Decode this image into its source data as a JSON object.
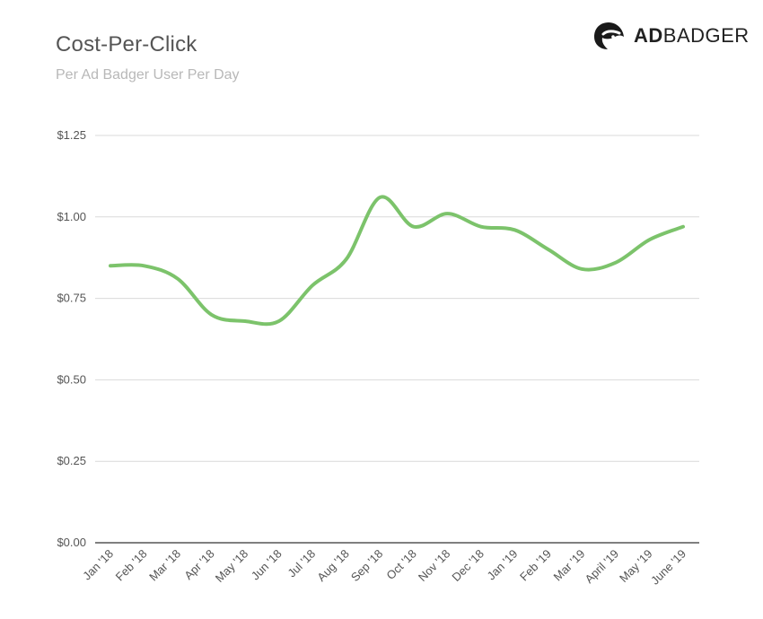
{
  "header": {
    "title": "Cost-Per-Click",
    "subtitle": "Per Ad Badger User Per Day"
  },
  "logo": {
    "icon": "badger-head-icon",
    "bold": "AD",
    "regular": "BADGER"
  },
  "colors": {
    "line": "#7cc36b",
    "grid": "#d9d9d9",
    "axis": "#555555"
  },
  "chart_data": {
    "type": "line",
    "title": "Cost-Per-Click",
    "subtitle": "Per Ad Badger User Per Day",
    "xlabel": "",
    "ylabel": "",
    "categories": [
      "Jan '18",
      "Feb '18",
      "Mar '18",
      "Apr '18",
      "May '18",
      "Jun '18",
      "Jul '18",
      "Aug '18",
      "Sep '18",
      "Oct '18",
      "Nov '18",
      "Dec '18",
      "Jan '19",
      "Feb '19",
      "Mar '19",
      "April '19",
      "May '19",
      "June '19"
    ],
    "series": [
      {
        "values": [
          0.85,
          0.85,
          0.81,
          0.7,
          0.68,
          0.68,
          0.79,
          0.87,
          1.06,
          0.97,
          1.01,
          0.97,
          0.96,
          0.9,
          0.84,
          0.86,
          0.93,
          0.97
        ]
      }
    ],
    "ylim": [
      0,
      1.25
    ],
    "yticks": [
      0,
      0.25,
      0.5,
      0.75,
      1.0,
      1.25
    ],
    "ytick_labels": [
      "$0.00",
      "$0.25",
      "$0.50",
      "$0.75",
      "$1.00",
      "$1.25"
    ],
    "grid": true,
    "legend": "none"
  }
}
